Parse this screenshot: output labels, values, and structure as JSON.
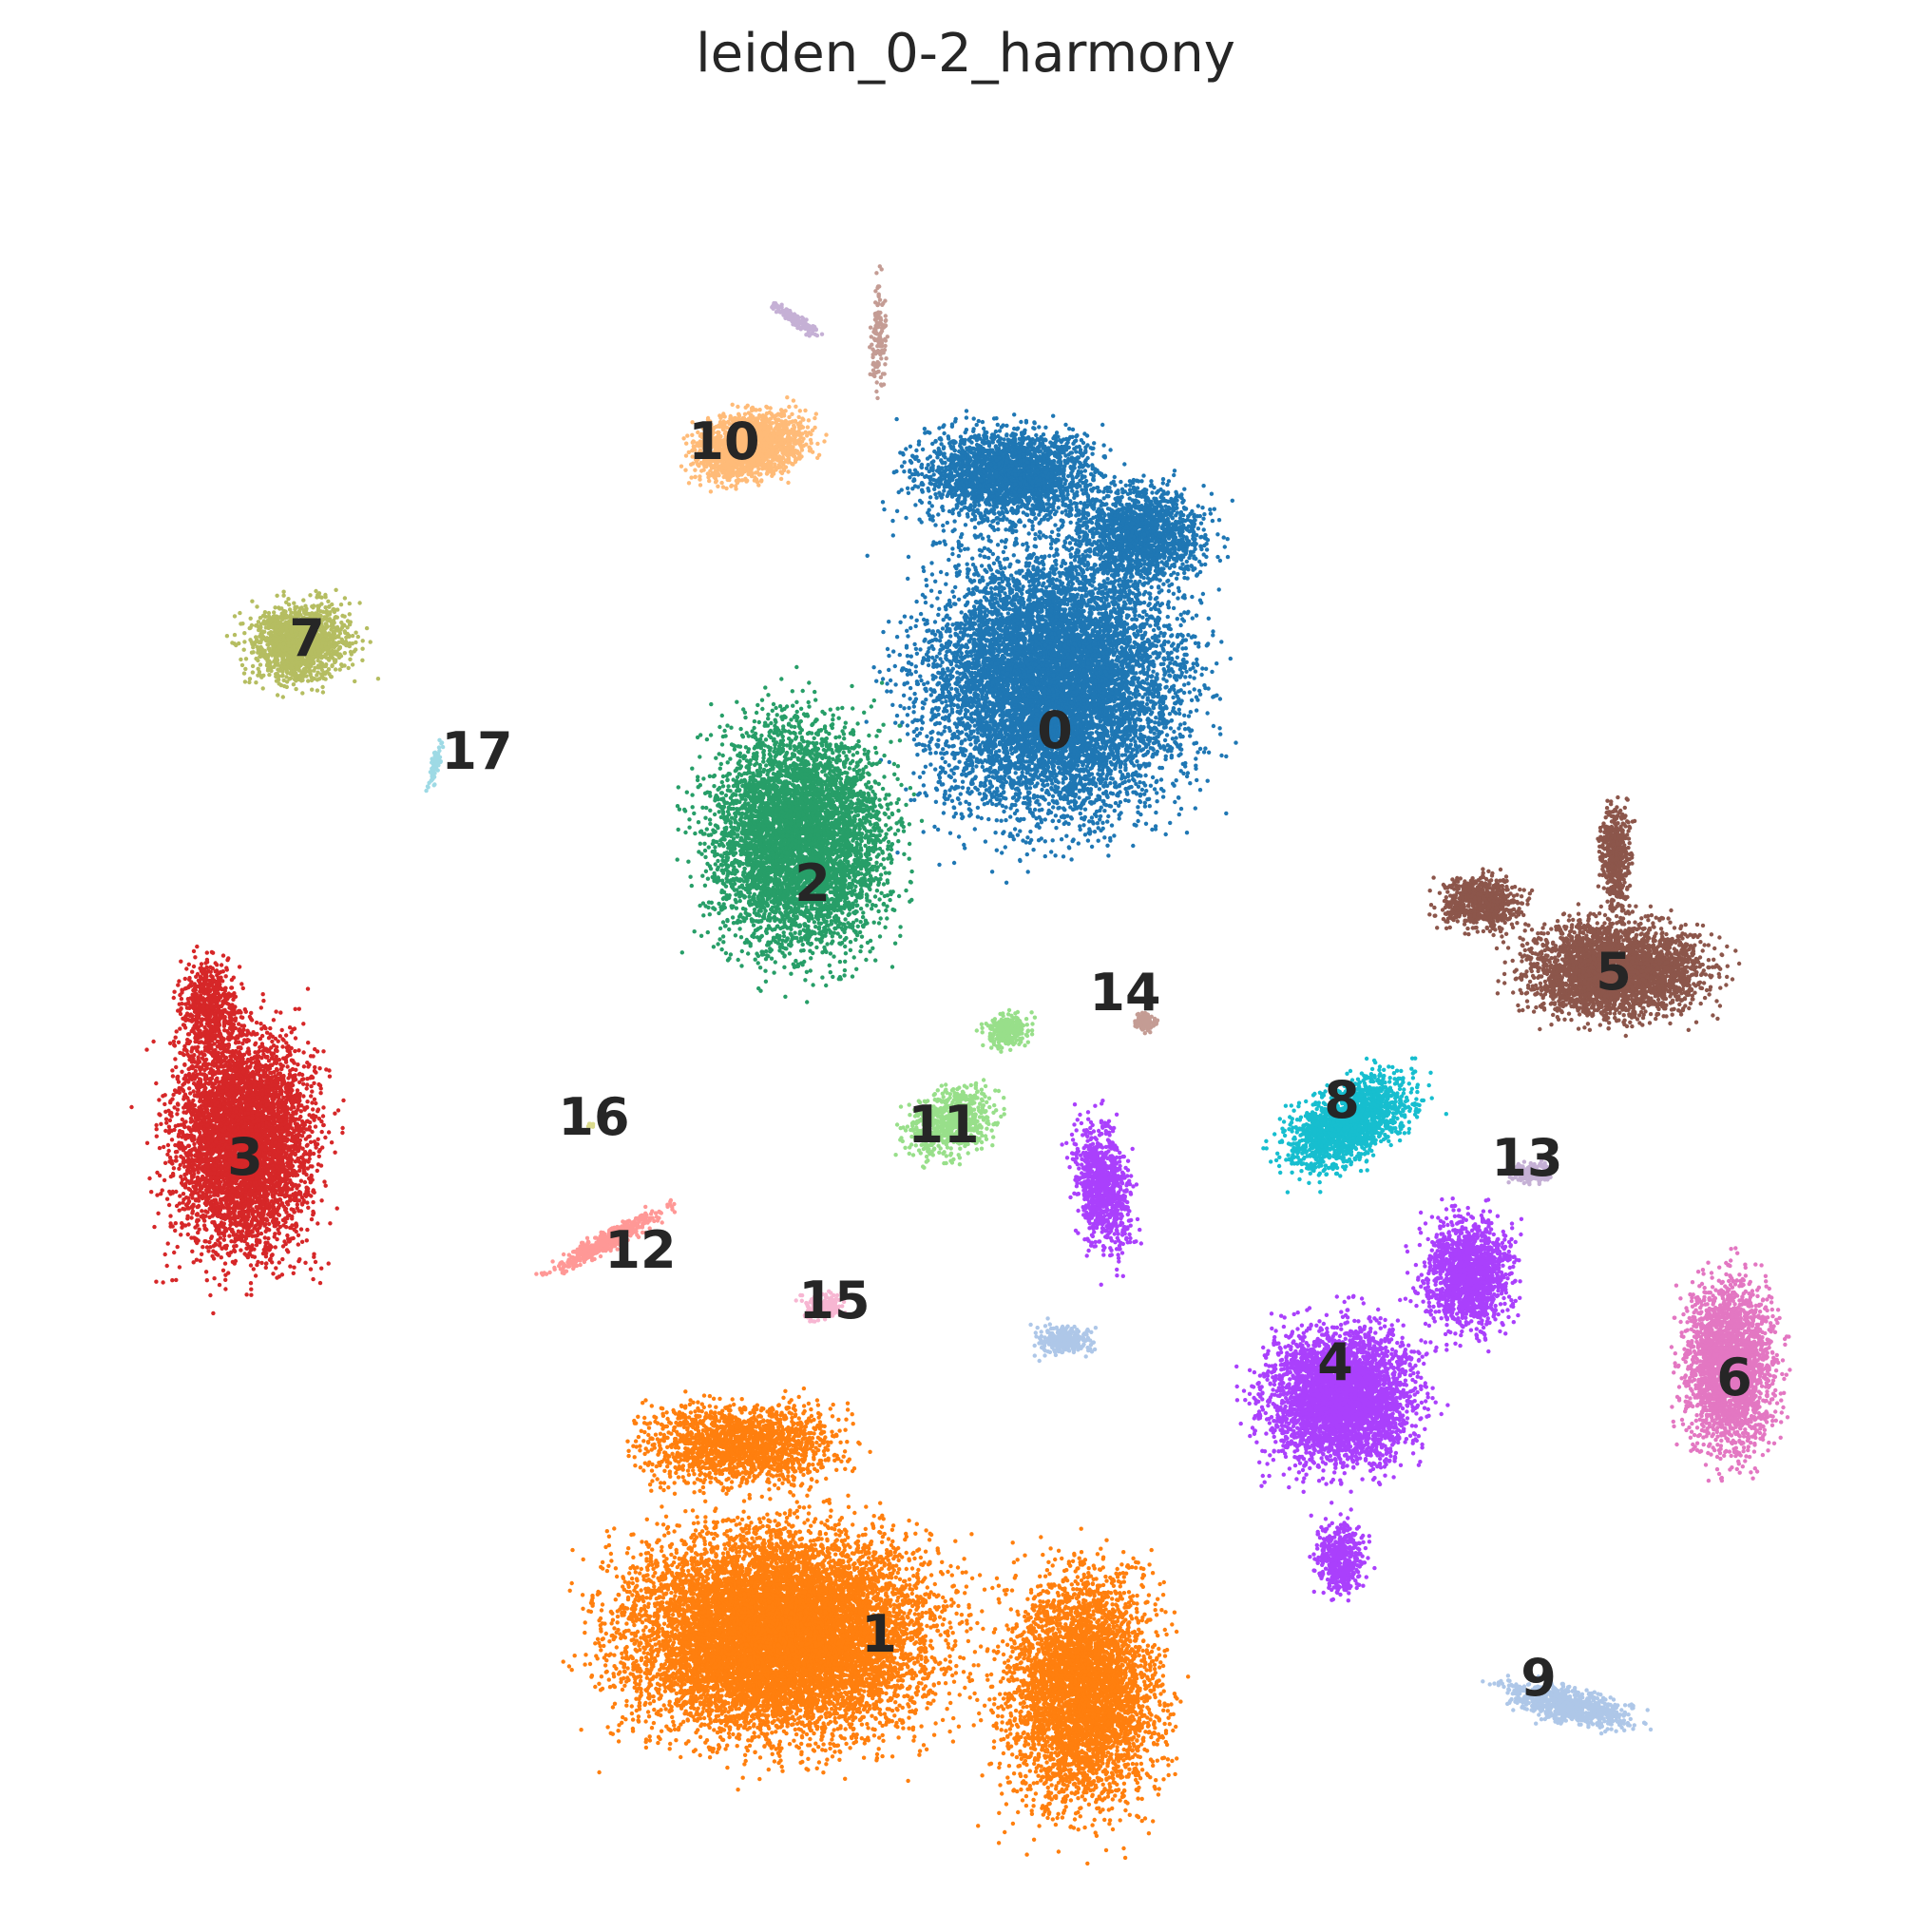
{
  "chart_data": {
    "type": "scatter",
    "title": "leiden_0-2_harmony",
    "xlabel": "",
    "ylabel": "",
    "grid": false,
    "axes_visible": false,
    "legend": "on data",
    "series": [
      {
        "label": "0",
        "color": "#1f77b4"
      },
      {
        "label": "1",
        "color": "#ff7f0e"
      },
      {
        "label": "2",
        "color": "#279e68"
      },
      {
        "label": "3",
        "color": "#d62728"
      },
      {
        "label": "4",
        "color": "#aa40fc"
      },
      {
        "label": "5",
        "color": "#8c564b"
      },
      {
        "label": "6",
        "color": "#e377c2"
      },
      {
        "label": "7",
        "color": "#b5bd61"
      },
      {
        "label": "8",
        "color": "#17becf"
      },
      {
        "label": "9",
        "color": "#aec7e8"
      },
      {
        "label": "10",
        "color": "#ffbb78"
      },
      {
        "label": "11",
        "color": "#98df8a"
      },
      {
        "label": "12",
        "color": "#ff9896"
      },
      {
        "label": "13",
        "color": "#c5b0d5"
      },
      {
        "label": "14",
        "color": "#c49c94"
      },
      {
        "label": "15",
        "color": "#f7b6d2"
      },
      {
        "label": "16",
        "color": "#dbdb8d"
      },
      {
        "label": "17",
        "color": "#9edae5"
      }
    ]
  }
}
